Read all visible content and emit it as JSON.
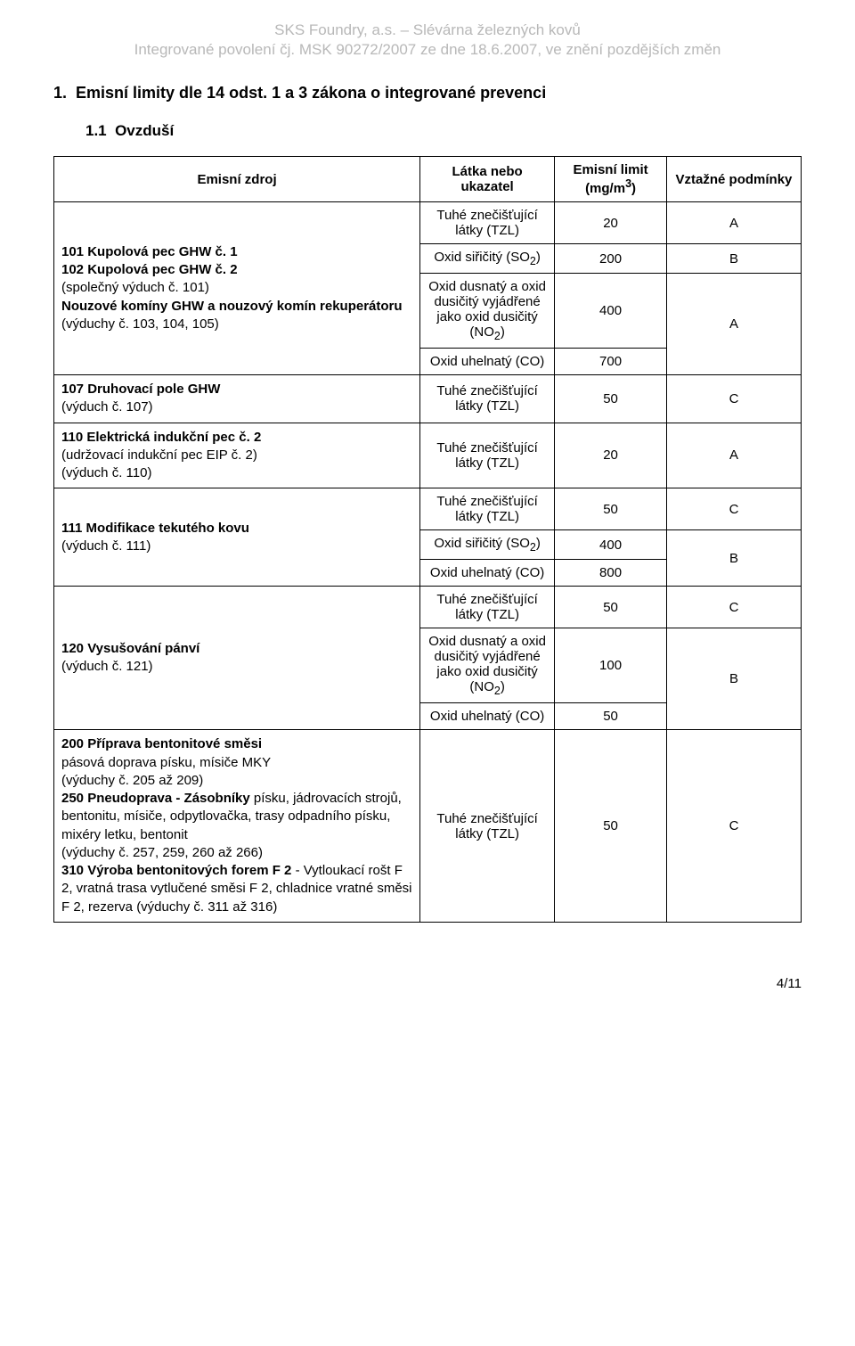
{
  "header": {
    "line1": "SKS Foundry, a.s. – Slévárna železných kovů",
    "line2": "Integrované povolení čj. MSK 90272/2007 ze dne 18.6.2007, ve znění pozdějších změn"
  },
  "section_title": "1.  Emisní limity dle 14 odst. 1 a 3 zákona o integrované prevenci",
  "subsection_title": "1.1  Ovzduší",
  "table": {
    "head": {
      "source": "Emisní zdroj",
      "indicator": "Látka nebo ukazatel",
      "limit_html": "Emisní limit (mg/m<sup>3</sup>)",
      "limit_plain": "Emisní limit (mg/m3)",
      "conditions": "Vztažné podmínky"
    },
    "labels": {
      "tzl": "Tuhé znečišťující látky (TZL)",
      "so2_html": "Oxid siřičitý (SO<sub>2</sub>)",
      "noX_html": "Oxid dusnatý a oxid dusičitý vyjádřené jako oxid dusičitý (NO<sub>2</sub>)",
      "co": "Oxid uhelnatý (CO)"
    },
    "rows": {
      "r1": {
        "src_parts": {
          "p1b": "101 Kupolová pec GHW č. 1",
          "p2b": "102 Kupolová pec GHW č. 2",
          "p3": "(společný výduch č. 101)",
          "p4b": "Nouzové komíny GHW a nouzový komín rekuperátoru",
          "p5": "(výduchy č. 103, 104, 105)"
        },
        "tzl_limit": "20",
        "tzl_cond": "A",
        "so2_limit": "200",
        "so2_cond": "B",
        "no2_limit": "400",
        "co_limit": "700",
        "nox_co_cond": "A"
      },
      "r2": {
        "src_parts": {
          "p1b": "107 Druhovací pole GHW",
          "p2": "(výduch č. 107)"
        },
        "limit": "50",
        "cond": "C"
      },
      "r3": {
        "src_parts": {
          "p1b": "110 Elektrická indukční pec č. 2",
          "p2": "(udržovací indukční pec EIP č. 2)",
          "p3": "(výduch č. 110)"
        },
        "limit": "20",
        "cond": "A"
      },
      "r4": {
        "src_parts": {
          "p1b": "111 Modifikace tekutého kovu",
          "p2": "(výduch č. 111)"
        },
        "tzl_limit": "50",
        "tzl_cond": "C",
        "so2_limit": "400",
        "co_limit": "800",
        "so2_co_cond": "B"
      },
      "r5": {
        "src_parts": {
          "p1b": "120 Vysušování pánví",
          "p2": "(výduch č. 121)"
        },
        "tzl_limit": "50",
        "tzl_cond": "C",
        "no2_limit": "100",
        "co_limit": "50",
        "nox_co_cond": "B"
      },
      "r6": {
        "src_parts": {
          "p1b": "200 Příprava bentonitové směsi",
          "p2": "pásová doprava písku, mísiče MKY",
          "p3": "(výduchy č. 205 až 209)",
          "p4b_inline": "250 Pneudoprava - Zásobníky",
          "p4_rest": " písku, jádrovacích strojů, bentonitu, mísiče, odpytlovačka, trasy odpadního písku, mixéry letku, bentonit",
          "p5": "(výduchy č. 257, 259, 260 až 266)",
          "p6b_inline": "310 Výroba bentonitových forem F 2",
          "p6_rest": " - Vytloukací rošt F 2, vratná trasa vytlučené směsi F 2, chladnice vratné směsi F 2, rezerva (výduchy č. 311 až 316)"
        },
        "limit": "50",
        "cond": "C"
      }
    }
  },
  "page_number": "4/11"
}
